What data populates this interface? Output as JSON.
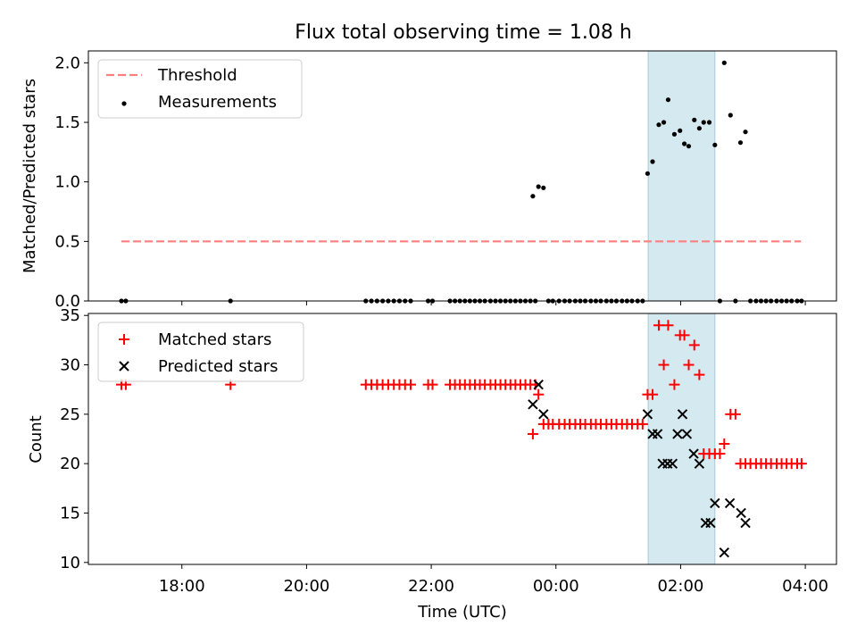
{
  "chart_data": {
    "type": "scatter",
    "title": "Flux total observing time = 1.08 h",
    "xlabel": "Time (UTC)",
    "x_units": "hours since 00:00 UTC",
    "xlim": [
      -7.5,
      4.5
    ],
    "x_ticks": [
      {
        "value": -6,
        "label": "18:00"
      },
      {
        "value": -4,
        "label": "20:00"
      },
      {
        "value": -2,
        "label": "22:00"
      },
      {
        "value": 0,
        "label": "00:00"
      },
      {
        "value": 2,
        "label": "02:00"
      },
      {
        "value": 4,
        "label": "04:00"
      }
    ],
    "highlight_span": {
      "x_start": 1.48,
      "x_end": 2.55,
      "color": "#d4e9f0"
    },
    "panels": [
      {
        "id": "ratio",
        "ylabel": "Matched/Predicted stars",
        "ylim": [
          0,
          2.1
        ],
        "y_ticks": [
          0.0,
          0.5,
          1.0,
          1.5,
          2.0
        ],
        "y_tick_labels": [
          "0.0",
          "0.5",
          "1.0",
          "1.5",
          "2.0"
        ],
        "legend": {
          "position": "upper-left",
          "entries": [
            {
              "label": "Threshold",
              "marker": "dashed-line",
              "color": "#ff7f7f"
            },
            {
              "label": "Measurements",
              "marker": "dot",
              "color": "#000000"
            }
          ]
        },
        "threshold": {
          "name": "Threshold",
          "y": 0.5,
          "x_start": -6.97,
          "x_end": 3.93,
          "color": "#ff7f7f"
        },
        "measurements": {
          "name": "Measurements",
          "color": "#000000",
          "x": [
            -6.97,
            -6.9,
            -5.22,
            -3.05,
            -2.96,
            -2.87,
            -2.78,
            -2.69,
            -2.6,
            -2.51,
            -2.42,
            -2.33,
            -2.05,
            -1.98,
            -1.7,
            -1.62,
            -1.54,
            -1.46,
            -1.38,
            -1.3,
            -1.22,
            -1.14,
            -1.05,
            -0.97,
            -0.89,
            -0.81,
            -0.73,
            -0.65,
            -0.57,
            -0.49,
            -0.41,
            -0.33,
            -0.37,
            -0.28,
            -0.2,
            -0.12,
            -0.05,
            0.05,
            0.14,
            0.22,
            0.31,
            0.39,
            0.47,
            0.56,
            0.64,
            0.72,
            0.81,
            0.89,
            0.97,
            1.06,
            1.14,
            1.22,
            1.31,
            1.39,
            1.47,
            1.55,
            1.65,
            1.73,
            1.8,
            1.9,
            1.99,
            2.06,
            2.13,
            2.22,
            2.3,
            2.37,
            2.46,
            2.55,
            2.63,
            2.7,
            2.8,
            2.88,
            2.96,
            3.04,
            3.12,
            3.21,
            3.29,
            3.37,
            3.45,
            3.54,
            3.62,
            3.7,
            3.78,
            3.87,
            3.94
          ],
          "y": [
            0,
            0,
            0,
            0,
            0,
            0,
            0,
            0,
            0,
            0,
            0,
            0,
            0,
            0,
            0,
            0,
            0,
            0,
            0,
            0,
            0,
            0,
            0,
            0,
            0,
            0,
            0,
            0,
            0,
            0,
            0,
            0,
            0.88,
            0.96,
            0.95,
            0,
            0,
            0,
            0,
            0,
            0,
            0,
            0,
            0,
            0,
            0,
            0,
            0,
            0,
            0,
            0,
            0,
            0,
            0,
            1.07,
            1.17,
            1.48,
            1.5,
            1.69,
            1.4,
            1.43,
            1.32,
            1.3,
            1.52,
            1.45,
            1.5,
            1.5,
            1.31,
            0,
            2.0,
            1.56,
            0,
            1.33,
            1.42,
            0,
            0,
            0,
            0,
            0,
            0,
            0,
            0,
            0,
            0,
            0
          ]
        }
      },
      {
        "id": "count",
        "ylabel": "Count",
        "ylim": [
          9.8,
          35.2
        ],
        "y_ticks": [
          10,
          15,
          20,
          25,
          30,
          35
        ],
        "y_tick_labels": [
          "10",
          "15",
          "20",
          "25",
          "30",
          "35"
        ],
        "legend": {
          "position": "upper-left",
          "entries": [
            {
              "label": "Matched stars",
              "marker": "plus",
              "color": "#ff0000"
            },
            {
              "label": "Predicted stars",
              "marker": "x",
              "color": "#000000"
            }
          ]
        },
        "series": [
          {
            "name": "Matched stars",
            "marker": "plus",
            "color": "#ff0000",
            "x": [
              -6.97,
              -6.9,
              -5.22,
              -3.05,
              -2.96,
              -2.87,
              -2.78,
              -2.69,
              -2.6,
              -2.51,
              -2.42,
              -2.33,
              -2.05,
              -1.98,
              -1.7,
              -1.62,
              -1.54,
              -1.46,
              -1.38,
              -1.3,
              -1.22,
              -1.14,
              -1.05,
              -0.97,
              -0.89,
              -0.81,
              -0.73,
              -0.65,
              -0.57,
              -0.49,
              -0.41,
              -0.33,
              -0.37,
              -0.28,
              -0.2,
              -0.12,
              -0.05,
              0.05,
              0.14,
              0.22,
              0.31,
              0.39,
              0.47,
              0.56,
              0.64,
              0.72,
              0.81,
              0.89,
              0.97,
              1.06,
              1.14,
              1.22,
              1.31,
              1.39,
              1.47,
              1.55,
              1.65,
              1.73,
              1.8,
              1.9,
              1.99,
              2.06,
              2.13,
              2.22,
              2.3,
              2.37,
              2.46,
              2.55,
              2.63,
              2.7,
              2.8,
              2.88,
              2.96,
              3.04,
              3.12,
              3.21,
              3.29,
              3.37,
              3.45,
              3.54,
              3.62,
              3.7,
              3.78,
              3.87,
              3.94
            ],
            "y": [
              28,
              28,
              28,
              28,
              28,
              28,
              28,
              28,
              28,
              28,
              28,
              28,
              28,
              28,
              28,
              28,
              28,
              28,
              28,
              28,
              28,
              28,
              28,
              28,
              28,
              28,
              28,
              28,
              28,
              28,
              28,
              28,
              23,
              27,
              24,
              24,
              24,
              24,
              24,
              24,
              24,
              24,
              24,
              24,
              24,
              24,
              24,
              24,
              24,
              24,
              24,
              24,
              24,
              24,
              27,
              27,
              34,
              30,
              34,
              28,
              33,
              33,
              30,
              32,
              29,
              21,
              21,
              21,
              21,
              22,
              25,
              25,
              20,
              20,
              20,
              20,
              20,
              20,
              20,
              20,
              20,
              20,
              20,
              20,
              20
            ]
          },
          {
            "name": "Predicted stars",
            "marker": "x",
            "color": "#000000",
            "x": [
              -0.37,
              -0.28,
              -0.2,
              1.47,
              1.55,
              1.63,
              1.71,
              1.79,
              1.87,
              1.95,
              2.03,
              2.1,
              2.21,
              2.3,
              2.4,
              2.48,
              2.55,
              2.79,
              2.97,
              3.04
            ],
            "y": [
              26,
              28,
              25,
              25,
              23,
              23,
              20,
              20,
              20,
              23,
              25,
              23,
              21,
              20,
              14,
              14,
              16,
              16,
              15,
              14
            ]
          },
          {
            "name": "Predicted stars",
            "marker": "x",
            "color": "#000000",
            "x": [
              2.7
            ],
            "y": [
              11
            ]
          }
        ]
      }
    ]
  }
}
